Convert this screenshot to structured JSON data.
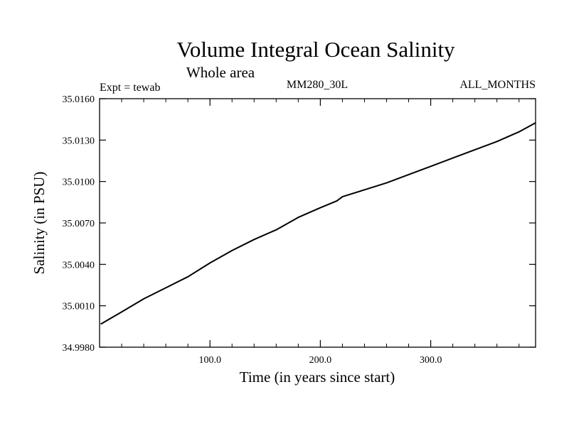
{
  "chart_data": {
    "type": "line",
    "title": "Volume Integral Ocean Salinity",
    "subtitle": "Whole area",
    "annotations": {
      "left": "Expt = tewab",
      "center": "MM280_30L",
      "right": "ALL_MONTHS"
    },
    "xlabel": "Time (in years since start)",
    "ylabel": "Salinity (in PSU)",
    "xlim": [
      0,
      395
    ],
    "ylim": [
      34.998,
      35.016
    ],
    "x_ticks": [
      100,
      200,
      300
    ],
    "x_tick_labels": [
      "100.0",
      "200.0",
      "300.0"
    ],
    "y_ticks": [
      34.998,
      35.001,
      35.004,
      35.007,
      35.01,
      35.013,
      35.016
    ],
    "y_tick_labels": [
      "34.9980",
      "35.0010",
      "35.0040",
      "35.0070",
      "35.0100",
      "35.0130",
      "35.0160"
    ],
    "grid": false,
    "legend": "none",
    "series": [
      {
        "x": [
          1,
          20,
          40,
          60,
          80,
          100,
          120,
          140,
          160,
          180,
          200,
          215,
          220,
          240,
          260,
          280,
          300,
          320,
          340,
          360,
          380,
          395
        ],
        "values": [
          34.99967,
          35.00055,
          35.0015,
          35.0023,
          35.0031,
          35.0041,
          35.005,
          35.0058,
          35.0065,
          35.0074,
          35.0081,
          35.0086,
          35.0089,
          35.0094,
          35.0099,
          35.0105,
          35.0111,
          35.0117,
          35.0123,
          35.0129,
          35.0136,
          35.01425
        ]
      }
    ]
  }
}
